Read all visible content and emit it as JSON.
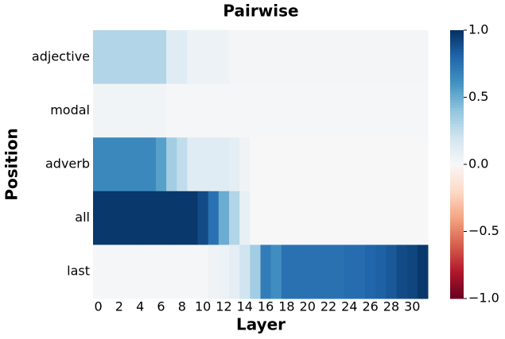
{
  "chart_data": {
    "type": "heatmap",
    "title": "Pairwise",
    "xlabel": "Layer",
    "ylabel": "Position",
    "colormap": "RdBu",
    "categories": [
      "adjective",
      "modal",
      "adverb",
      "all",
      "last"
    ],
    "values": [
      [
        0.3,
        0.3,
        0.3,
        0.3,
        0.3,
        0.3,
        0.3,
        0.12,
        0.12,
        0.06,
        0.06,
        0.06,
        0.06,
        0.02,
        0.02,
        0.02,
        0.02,
        0.02,
        0.02,
        0.02,
        0.02,
        0.02,
        0.02,
        0.02,
        0.02,
        0.02,
        0.02,
        0.02,
        0.02,
        0.02,
        0.02,
        0.02
      ],
      [
        0.03,
        0.03,
        0.03,
        0.03,
        0.03,
        0.03,
        0.03,
        0.01,
        0.01,
        0.01,
        0.01,
        0.01,
        0.01,
        0.01,
        0.01,
        0.01,
        0.01,
        0.01,
        0.01,
        0.01,
        0.01,
        0.01,
        0.01,
        0.01,
        0.01,
        0.01,
        0.01,
        0.01,
        0.01,
        0.01,
        0.01,
        0.01
      ],
      [
        0.65,
        0.65,
        0.65,
        0.65,
        0.65,
        0.65,
        0.55,
        0.35,
        0.25,
        0.12,
        0.12,
        0.12,
        0.12,
        0.1,
        0.04,
        0,
        0,
        0,
        0,
        0,
        0,
        0,
        0,
        0,
        0,
        0,
        0,
        0,
        0,
        0,
        0,
        0
      ],
      [
        0.97,
        0.97,
        0.97,
        0.97,
        0.97,
        0.97,
        0.97,
        0.97,
        0.97,
        0.97,
        0.9,
        0.75,
        0.5,
        0.3,
        0.08,
        0,
        0,
        0,
        0,
        0,
        0,
        0,
        0,
        0,
        0,
        0,
        0,
        0,
        0,
        0,
        0,
        0
      ],
      [
        0.01,
        0.01,
        0.01,
        0.01,
        0.01,
        0.01,
        0.01,
        0.01,
        0.01,
        0.01,
        0.01,
        0.04,
        0.06,
        0.1,
        0.2,
        0.35,
        0.7,
        0.62,
        0.75,
        0.75,
        0.75,
        0.75,
        0.75,
        0.75,
        0.77,
        0.77,
        0.8,
        0.82,
        0.85,
        0.9,
        0.92,
        0.97
      ]
    ],
    "xticks": [
      0,
      2,
      4,
      6,
      8,
      10,
      12,
      14,
      16,
      18,
      20,
      22,
      24,
      26,
      28,
      30
    ],
    "clim": [
      -1,
      1
    ],
    "cticks": [
      {
        "value": 1,
        "label": "1.0"
      },
      0.5,
      {
        "value": 0,
        "label": "0.0"
      },
      {
        "value": -0.5,
        "label": "−0.5"
      },
      {
        "value": -1,
        "label": "−1.0"
      }
    ]
  }
}
